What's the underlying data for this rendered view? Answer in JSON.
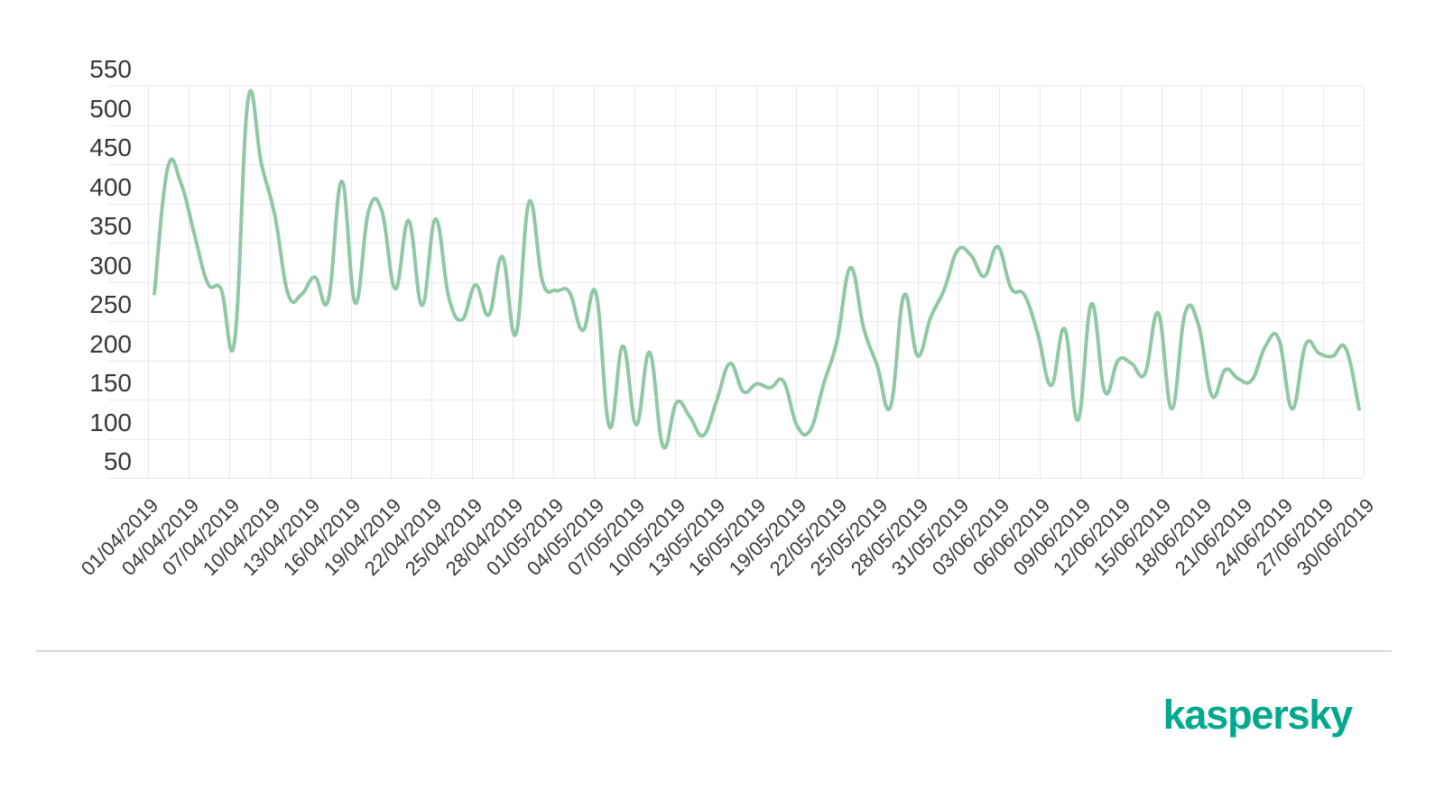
{
  "page": {
    "background": "#ffffff",
    "separator_color": "#D8D8D8"
  },
  "brand": {
    "logo_text": "kaspersky",
    "logo_color": "#00A88E"
  },
  "chart_data": {
    "type": "line",
    "title": "",
    "xlabel": "",
    "ylabel": "",
    "legend": "none",
    "grid": "on",
    "line_color": "#90C7A4",
    "line_width": 4,
    "grid_color": "#E9E9E9",
    "tick_color": "#3a3a3a",
    "ylim": [
      50,
      550
    ],
    "y_ticks": [
      550,
      500,
      450,
      400,
      350,
      300,
      250,
      200,
      150,
      100,
      50
    ],
    "x_tick_labels": [
      "01/04/2019",
      "04/04/2019",
      "07/04/2019",
      "10/04/2019",
      "13/04/2019",
      "16/04/2019",
      "19/04/2019",
      "22/04/2019",
      "25/04/2019",
      "28/04/2019",
      "01/05/2019",
      "04/05/2019",
      "07/05/2019",
      "10/05/2019",
      "13/05/2019",
      "16/05/2019",
      "19/05/2019",
      "22/05/2019",
      "25/05/2019",
      "28/05/2019",
      "31/05/2019",
      "03/06/2019",
      "06/06/2019",
      "09/06/2019",
      "12/06/2019",
      "15/06/2019",
      "18/06/2019",
      "21/06/2019",
      "24/06/2019",
      "27/06/2019",
      "30/06/2019"
    ],
    "dates": [
      "01/04/2019",
      "02/04/2019",
      "03/04/2019",
      "04/04/2019",
      "05/04/2019",
      "06/04/2019",
      "07/04/2019",
      "08/04/2019",
      "09/04/2019",
      "10/04/2019",
      "11/04/2019",
      "12/04/2019",
      "13/04/2019",
      "14/04/2019",
      "15/04/2019",
      "16/04/2019",
      "17/04/2019",
      "18/04/2019",
      "19/04/2019",
      "20/04/2019",
      "21/04/2019",
      "22/04/2019",
      "23/04/2019",
      "24/04/2019",
      "25/04/2019",
      "26/04/2019",
      "27/04/2019",
      "28/04/2019",
      "29/04/2019",
      "30/04/2019",
      "01/05/2019",
      "02/05/2019",
      "03/05/2019",
      "04/05/2019",
      "05/05/2019",
      "06/05/2019",
      "07/05/2019",
      "08/05/2019",
      "09/05/2019",
      "10/05/2019",
      "11/05/2019",
      "12/05/2019",
      "13/05/2019",
      "14/05/2019",
      "15/05/2019",
      "16/05/2019",
      "17/05/2019",
      "18/05/2019",
      "19/05/2019",
      "20/05/2019",
      "21/05/2019",
      "22/05/2019",
      "23/05/2019",
      "24/05/2019",
      "25/05/2019",
      "26/05/2019",
      "27/05/2019",
      "28/05/2019",
      "29/05/2019",
      "30/05/2019",
      "31/05/2019",
      "01/06/2019",
      "02/06/2019",
      "03/06/2019",
      "04/06/2019",
      "05/06/2019",
      "06/06/2019",
      "07/06/2019",
      "08/06/2019",
      "09/06/2019",
      "10/06/2019",
      "11/06/2019",
      "12/06/2019",
      "13/06/2019",
      "14/06/2019",
      "15/06/2019",
      "16/06/2019",
      "17/06/2019",
      "18/06/2019",
      "19/06/2019",
      "20/06/2019",
      "21/06/2019",
      "22/06/2019",
      "23/06/2019",
      "24/06/2019",
      "25/06/2019",
      "26/06/2019",
      "27/06/2019",
      "28/06/2019",
      "29/06/2019",
      "30/06/2019"
    ],
    "values": [
      285,
      445,
      425,
      360,
      298,
      290,
      225,
      532,
      450,
      385,
      284,
      284,
      306,
      277,
      428,
      273,
      390,
      390,
      291,
      378,
      270,
      380,
      280,
      252,
      296,
      258,
      332,
      233,
      402,
      300,
      289,
      287,
      238,
      285,
      115,
      218,
      118,
      210,
      90,
      146,
      128,
      104,
      148,
      196,
      160,
      170,
      165,
      173,
      117,
      111,
      170,
      225,
      318,
      240,
      193,
      141,
      283,
      206,
      255,
      290,
      340,
      334,
      307,
      345,
      292,
      283,
      233,
      168,
      240,
      124,
      272,
      160,
      200,
      196,
      183,
      260,
      138,
      260,
      245,
      155,
      188,
      176,
      175,
      218,
      227,
      138,
      220,
      209,
      205,
      215,
      138
    ]
  }
}
